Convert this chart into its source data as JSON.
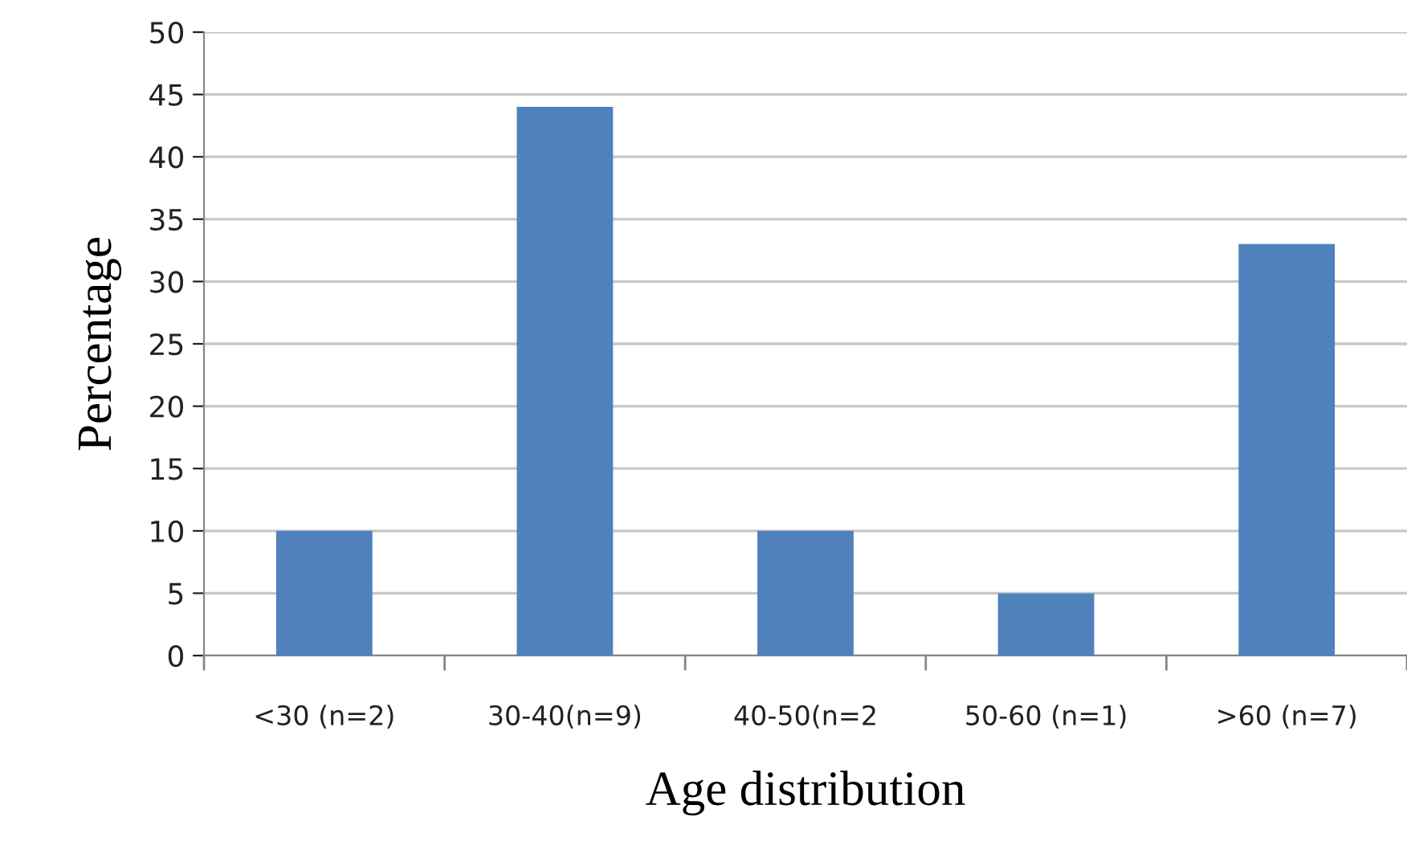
{
  "chart_data": {
    "type": "bar",
    "xlabel": "Age distribution",
    "ylabel": "Percentage",
    "categories": [
      "<30 (n=2)",
      "30-40(n=9)",
      "40-50(n=2",
      "50-60 (n=1)",
      ">60 (n=7)"
    ],
    "values": [
      10,
      44,
      10,
      5,
      33
    ],
    "color": "#4f81bd",
    "ylim": [
      0,
      50
    ],
    "yticks": [
      0,
      5,
      10,
      15,
      20,
      25,
      30,
      35,
      40,
      45,
      50
    ],
    "grid": "y"
  }
}
